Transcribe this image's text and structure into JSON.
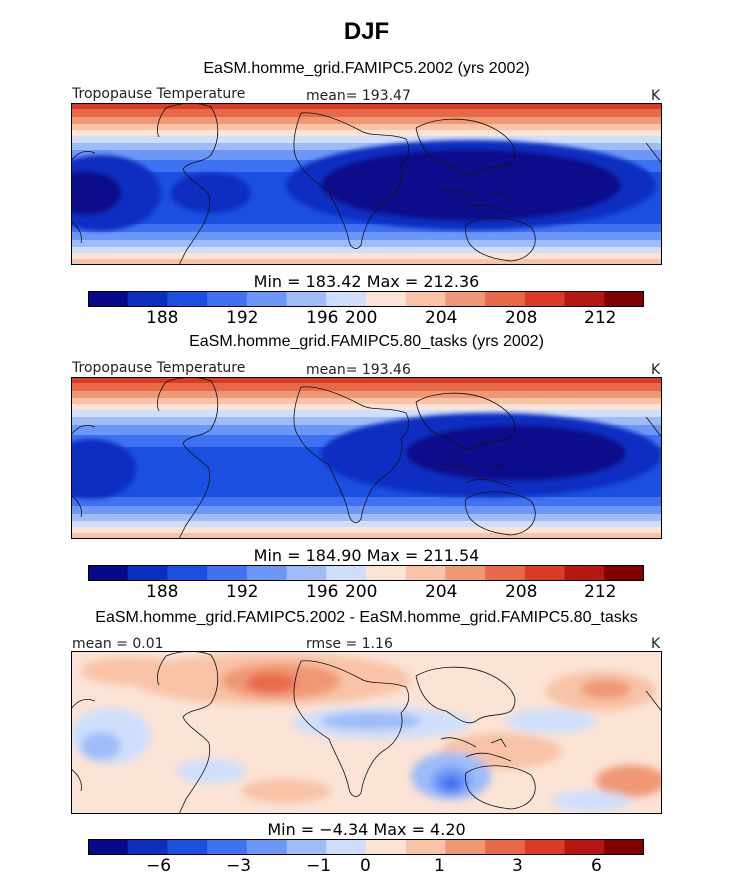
{
  "title": "DJF",
  "colors": [
    "#08088c",
    "#0d2fc0",
    "#1a4fe0",
    "#3e72f2",
    "#6d97f6",
    "#9ebcf8",
    "#cfdffb",
    "#fbe3d6",
    "#f8c3a6",
    "#f09874",
    "#e8694a",
    "#d93b25",
    "#b5160f",
    "#800000"
  ],
  "chart_data": [
    {
      "type": "heatmap",
      "title": "EaSM.homme_grid.FAMIPC5.2002 (yrs 2002)",
      "variable_label": "Tropopause Temperature",
      "mean_text": "mean= 193.47",
      "units": "K",
      "minmax_text": "Min = 183.42 Max = 212.36",
      "min": 183.42,
      "max": 212.36,
      "mean": 193.47,
      "colorbar_ticks": [
        "188",
        "192",
        "196",
        "200",
        "204",
        "208",
        "212"
      ],
      "colorbar_levels": [
        186,
        188,
        190,
        192,
        194,
        196,
        198,
        200,
        202,
        204,
        206,
        208,
        210,
        212,
        214
      ]
    },
    {
      "type": "heatmap",
      "title": "EaSM.homme_grid.FAMIPC5.80_tasks (yrs 2002)",
      "variable_label": "Tropopause Temperature",
      "mean_text": "mean= 193.46",
      "units": "K",
      "minmax_text": "Min = 184.90 Max = 211.54",
      "min": 184.9,
      "max": 211.54,
      "mean": 193.46,
      "colorbar_ticks": [
        "188",
        "192",
        "196",
        "200",
        "204",
        "208",
        "212"
      ],
      "colorbar_levels": [
        186,
        188,
        190,
        192,
        194,
        196,
        198,
        200,
        202,
        204,
        206,
        208,
        210,
        212,
        214
      ]
    },
    {
      "type": "heatmap",
      "title": "EaSM.homme_grid.FAMIPC5.2002 - EaSM.homme_grid.FAMIPC5.80_tasks",
      "mean_text": "mean =    0.01",
      "rmse_text": "rmse =    1.16",
      "units": "K",
      "minmax_text": "Min =  −4.34 Max =   4.20",
      "min": -4.34,
      "max": 4.2,
      "mean": 0.01,
      "rmse": 1.16,
      "colorbar_ticks": [
        "−6",
        "−3",
        "−1",
        "0",
        "1",
        "3",
        "6"
      ]
    }
  ]
}
